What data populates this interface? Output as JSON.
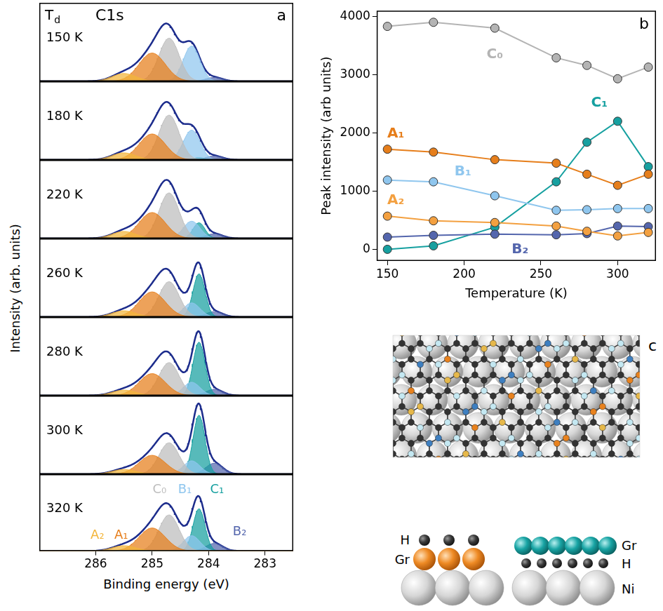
{
  "chart_data": [
    {
      "type": "area",
      "panel": "a",
      "title": "C1s",
      "annotation": "Td",
      "x_label": "Binding energy (eV)",
      "y_label": "Intensity (arb. units)",
      "xlim": [
        287,
        282.5
      ],
      "xticks": [
        286,
        285,
        284,
        283
      ],
      "tick_labels": "x",
      "grid": false,
      "series": [
        {
          "name": "A₂",
          "color": "#f3b53a"
        },
        {
          "name": "A₁",
          "color": "#e67e1b"
        },
        {
          "name": "C₀",
          "color": "#bdbdbd"
        },
        {
          "name": "B₁",
          "color": "#8fc6ee"
        },
        {
          "name": "C₁",
          "color": "#16a0a0"
        },
        {
          "name": "B₂",
          "color": "#5466ad"
        }
      ],
      "panels": [
        {
          "label": "150 K",
          "ylim": [
            0,
            1
          ],
          "components": [
            {
              "center": 285.5,
              "height": 0.1,
              "fwhm": 0.5
            },
            {
              "center": 285.0,
              "height": 0.36,
              "fwhm": 0.55
            },
            {
              "center": 284.7,
              "height": 0.55,
              "fwhm": 0.42
            },
            {
              "center": 284.3,
              "height": 0.45,
              "fwhm": 0.35
            },
            {
              "center": 284.17,
              "height": 0,
              "fwhm": 0.25
            },
            {
              "center": 283.9,
              "height": 0.05,
              "fwhm": 0.35
            }
          ]
        },
        {
          "label": "180 K",
          "ylim": [
            0,
            1
          ],
          "components": [
            {
              "center": 285.5,
              "height": 0.09,
              "fwhm": 0.5
            },
            {
              "center": 285.0,
              "height": 0.33,
              "fwhm": 0.55
            },
            {
              "center": 284.7,
              "height": 0.57,
              "fwhm": 0.42
            },
            {
              "center": 284.3,
              "height": 0.38,
              "fwhm": 0.35
            },
            {
              "center": 284.17,
              "height": 0.03,
              "fwhm": 0.25
            },
            {
              "center": 283.9,
              "height": 0.05,
              "fwhm": 0.35
            }
          ]
        },
        {
          "label": "220 K",
          "ylim": [
            0,
            1
          ],
          "components": [
            {
              "center": 285.5,
              "height": 0.09,
              "fwhm": 0.5
            },
            {
              "center": 285.0,
              "height": 0.33,
              "fwhm": 0.55
            },
            {
              "center": 284.7,
              "height": 0.58,
              "fwhm": 0.42
            },
            {
              "center": 284.3,
              "height": 0.22,
              "fwhm": 0.35
            },
            {
              "center": 284.17,
              "height": 0.2,
              "fwhm": 0.25
            },
            {
              "center": 283.9,
              "height": 0.06,
              "fwhm": 0.35
            }
          ]
        },
        {
          "label": "260 K",
          "ylim": [
            0,
            1
          ],
          "components": [
            {
              "center": 285.5,
              "height": 0.08,
              "fwhm": 0.5
            },
            {
              "center": 285.0,
              "height": 0.32,
              "fwhm": 0.55
            },
            {
              "center": 284.7,
              "height": 0.45,
              "fwhm": 0.42
            },
            {
              "center": 284.3,
              "height": 0.18,
              "fwhm": 0.35
            },
            {
              "center": 284.17,
              "height": 0.55,
              "fwhm": 0.25
            },
            {
              "center": 283.9,
              "height": 0.07,
              "fwhm": 0.35
            }
          ]
        },
        {
          "label": "280 K",
          "ylim": [
            0,
            1
          ],
          "components": [
            {
              "center": 285.5,
              "height": 0.07,
              "fwhm": 0.5
            },
            {
              "center": 285.0,
              "height": 0.28,
              "fwhm": 0.55
            },
            {
              "center": 284.7,
              "height": 0.42,
              "fwhm": 0.42
            },
            {
              "center": 284.3,
              "height": 0.17,
              "fwhm": 0.35
            },
            {
              "center": 284.17,
              "height": 0.68,
              "fwhm": 0.25
            },
            {
              "center": 283.9,
              "height": 0.08,
              "fwhm": 0.35
            }
          ]
        },
        {
          "label": "300 K",
          "ylim": [
            0,
            1
          ],
          "components": [
            {
              "center": 285.5,
              "height": 0.06,
              "fwhm": 0.5
            },
            {
              "center": 285.0,
              "height": 0.24,
              "fwhm": 0.55
            },
            {
              "center": 284.7,
              "height": 0.4,
              "fwhm": 0.42
            },
            {
              "center": 284.3,
              "height": 0.17,
              "fwhm": 0.35
            },
            {
              "center": 284.17,
              "height": 0.75,
              "fwhm": 0.25
            },
            {
              "center": 283.9,
              "height": 0.14,
              "fwhm": 0.35
            }
          ]
        },
        {
          "label": "320 K",
          "ylim": [
            0,
            1
          ],
          "components": [
            {
              "center": 285.5,
              "height": 0.07,
              "fwhm": 0.5
            },
            {
              "center": 285.0,
              "height": 0.3,
              "fwhm": 0.55
            },
            {
              "center": 284.7,
              "height": 0.47,
              "fwhm": 0.42
            },
            {
              "center": 284.3,
              "height": 0.2,
              "fwhm": 0.35
            },
            {
              "center": 284.17,
              "height": 0.55,
              "fwhm": 0.25
            },
            {
              "center": 283.9,
              "height": 0.1,
              "fwhm": 0.35
            }
          ]
        }
      ]
    },
    {
      "type": "line",
      "panel": "b",
      "x_label": "Temperature (K)",
      "y_label": "Peak intensity (arb units)",
      "x": [
        150,
        180,
        220,
        260,
        280,
        300,
        320
      ],
      "xlim": [
        143,
        325
      ],
      "xticks": [
        150,
        200,
        250,
        300
      ],
      "ylim": [
        -200,
        4100
      ],
      "yticks": [
        0,
        1000,
        2000,
        3000,
        4000
      ],
      "grid": false,
      "marker": "circle",
      "series": [
        {
          "name": "C₀",
          "color": "#b4b4b4",
          "values": [
            3830,
            3900,
            3800,
            3290,
            3160,
            2930,
            3130
          ]
        },
        {
          "name": "A₁",
          "color": "#e67e1b",
          "values": [
            1720,
            1670,
            1540,
            1480,
            1290,
            1100,
            1290
          ]
        },
        {
          "name": "B₁",
          "color": "#8fc6ee",
          "values": [
            1190,
            1160,
            920,
            670,
            680,
            700,
            700
          ]
        },
        {
          "name": "A₂",
          "color": "#f3a040",
          "values": [
            570,
            490,
            460,
            400,
            310,
            230,
            290
          ]
        },
        {
          "name": "B₂",
          "color": "#5466ad",
          "values": [
            210,
            240,
            260,
            250,
            270,
            400,
            390
          ]
        },
        {
          "name": "C₁",
          "color": "#16a0a0",
          "values": [
            0,
            60,
            380,
            1160,
            1840,
            2200,
            1420
          ]
        }
      ]
    }
  ],
  "diagram": {
    "panel": "c",
    "left_labels": [
      "H",
      "Gr"
    ],
    "right_labels": [
      "Gr",
      "H",
      "Ni"
    ]
  }
}
